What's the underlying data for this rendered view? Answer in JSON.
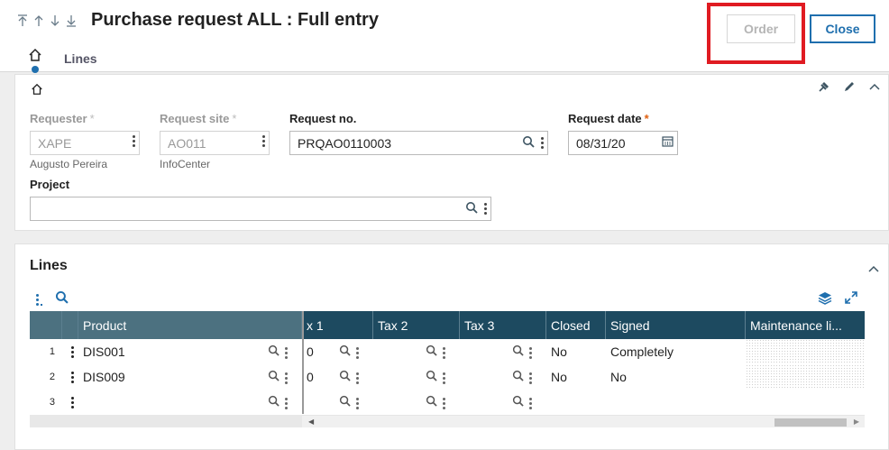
{
  "header": {
    "title": "Purchase request ALL : Full entry",
    "order_label": "Order",
    "close_label": "Close",
    "tab_lines": "Lines"
  },
  "form": {
    "requester": {
      "label": "Requester",
      "value": "XAPE",
      "sub": "Augusto Pereira"
    },
    "site": {
      "label": "Request site",
      "value": "AO011",
      "sub": "InfoCenter"
    },
    "request_no": {
      "label": "Request no.",
      "value": "PRQAO0110003"
    },
    "request_date": {
      "label": "Request date",
      "value": "08/31/20"
    },
    "project": {
      "label": "Project",
      "value": ""
    },
    "required_mark": "*"
  },
  "lines": {
    "title": "Lines",
    "columns": [
      "Product",
      "x 1",
      "Tax 2",
      "Tax 3",
      "Closed",
      "Signed",
      "Maintenance li..."
    ],
    "rows": [
      {
        "num": "1",
        "product": "DIS001",
        "tax1": "0",
        "closed": "No",
        "signed": "Completely"
      },
      {
        "num": "2",
        "product": "DIS009",
        "tax1": "0",
        "closed": "No",
        "signed": "No"
      },
      {
        "num": "3",
        "product": "",
        "tax1": "",
        "closed": "",
        "signed": ""
      }
    ]
  },
  "colors": {
    "accent": "#1f6fae",
    "grid_header": "#1d4a60",
    "highlight": "#e01b22",
    "required": "#e06010"
  },
  "icons": [
    "first-icon",
    "prev-icon",
    "next-icon",
    "last-icon",
    "home-icon",
    "pin-icon",
    "pencil-icon",
    "chevron-up-icon",
    "search-icon",
    "kebab-icon",
    "calendar-icon",
    "layers-icon",
    "expand-icon"
  ]
}
